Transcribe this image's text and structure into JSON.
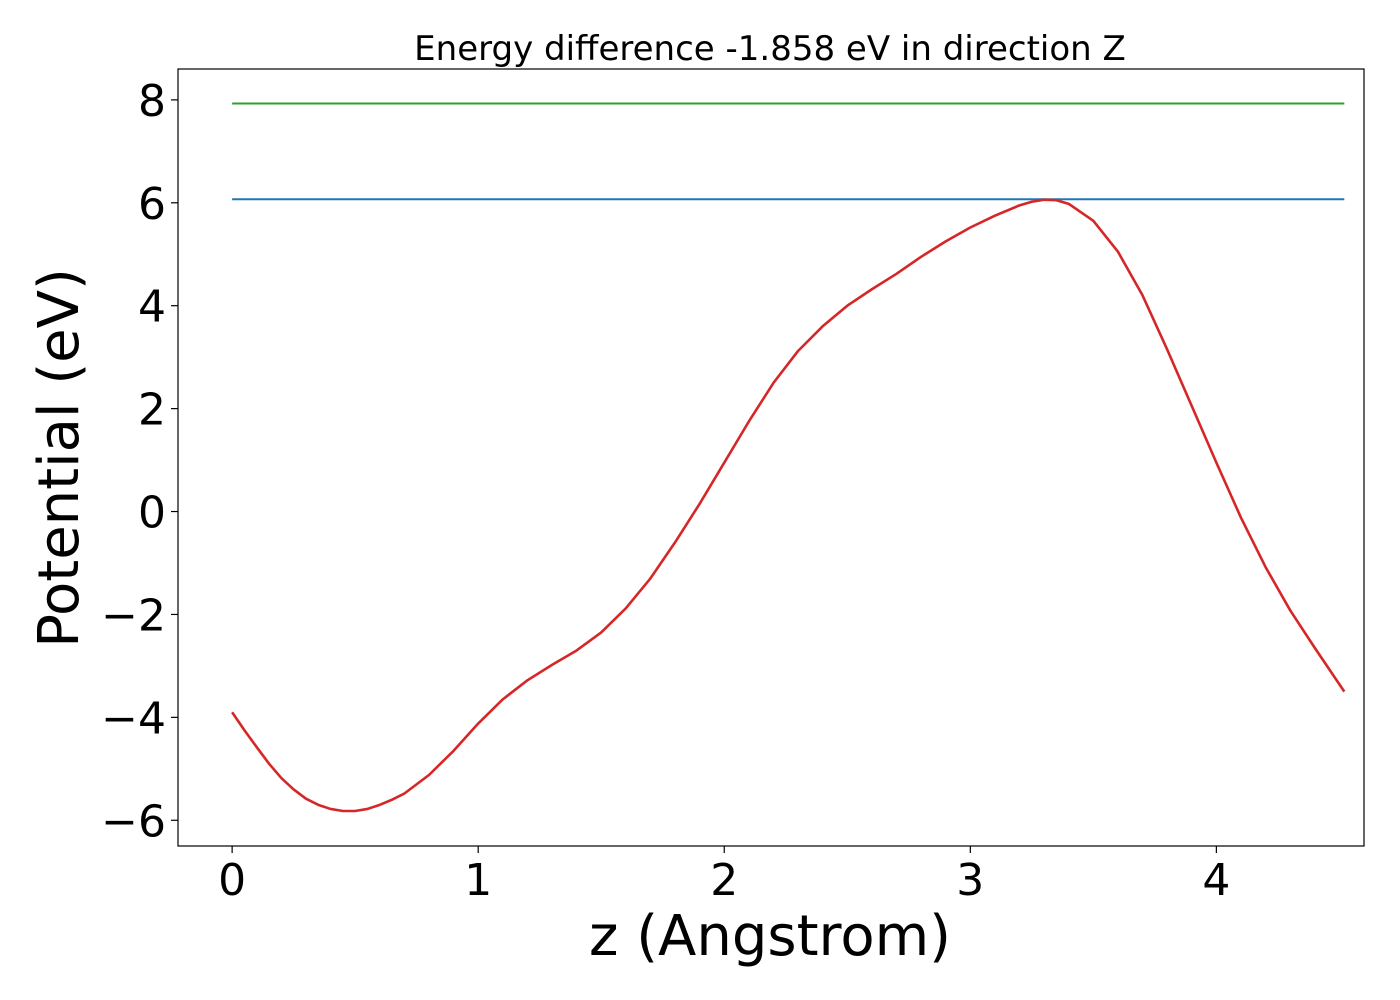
{
  "chart_data": {
    "type": "line",
    "title": "Energy difference -1.858 eV in direction Z",
    "xlabel": "z (Angstrom)",
    "ylabel": "Potential (eV)",
    "xlim": [
      -0.22,
      4.6
    ],
    "ylim": [
      -6.5,
      8.6
    ],
    "grid": false,
    "xticks": [
      {
        "value": 0,
        "label": "0"
      },
      {
        "value": 1,
        "label": "1"
      },
      {
        "value": 2,
        "label": "2"
      },
      {
        "value": 3,
        "label": "3"
      },
      {
        "value": 4,
        "label": "4"
      }
    ],
    "yticks": [
      {
        "value": -6,
        "label": "−6"
      },
      {
        "value": -4,
        "label": "−4"
      },
      {
        "value": -2,
        "label": "−2"
      },
      {
        "value": 0,
        "label": "0"
      },
      {
        "value": 2,
        "label": "2"
      },
      {
        "value": 4,
        "label": "4"
      },
      {
        "value": 6,
        "label": "6"
      },
      {
        "value": 8,
        "label": "8"
      }
    ],
    "series": [
      {
        "color": "#2ca02c",
        "x": [
          0,
          4.52
        ],
        "y": [
          7.93,
          7.93
        ]
      },
      {
        "color": "#1f77b4",
        "x": [
          0,
          4.52
        ],
        "y": [
          6.07,
          6.07
        ]
      },
      {
        "color": "#d62728",
        "x": [
          0,
          0.05,
          0.1,
          0.15,
          0.2,
          0.25,
          0.3,
          0.35,
          0.4,
          0.45,
          0.5,
          0.55,
          0.6,
          0.65,
          0.7,
          0.8,
          0.9,
          1.0,
          1.1,
          1.2,
          1.3,
          1.4,
          1.5,
          1.6,
          1.7,
          1.8,
          1.9,
          2.0,
          2.1,
          2.2,
          2.3,
          2.4,
          2.5,
          2.6,
          2.7,
          2.8,
          2.9,
          3.0,
          3.1,
          3.2,
          3.25,
          3.3,
          3.35,
          3.4,
          3.5,
          3.6,
          3.7,
          3.8,
          3.9,
          4.0,
          4.1,
          4.2,
          4.3,
          4.4,
          4.52
        ],
        "y": [
          -3.9,
          -4.25,
          -4.58,
          -4.9,
          -5.18,
          -5.4,
          -5.58,
          -5.7,
          -5.78,
          -5.82,
          -5.82,
          -5.78,
          -5.7,
          -5.6,
          -5.48,
          -5.12,
          -4.65,
          -4.12,
          -3.65,
          -3.28,
          -2.98,
          -2.7,
          -2.35,
          -1.88,
          -1.3,
          -0.6,
          0.15,
          0.95,
          1.75,
          2.5,
          3.12,
          3.6,
          4.0,
          4.32,
          4.62,
          4.95,
          5.25,
          5.52,
          5.75,
          5.95,
          6.02,
          6.06,
          6.05,
          5.98,
          5.65,
          5.05,
          4.2,
          3.15,
          2.05,
          0.95,
          -0.12,
          -1.08,
          -1.92,
          -2.65,
          -3.5
        ]
      }
    ]
  }
}
